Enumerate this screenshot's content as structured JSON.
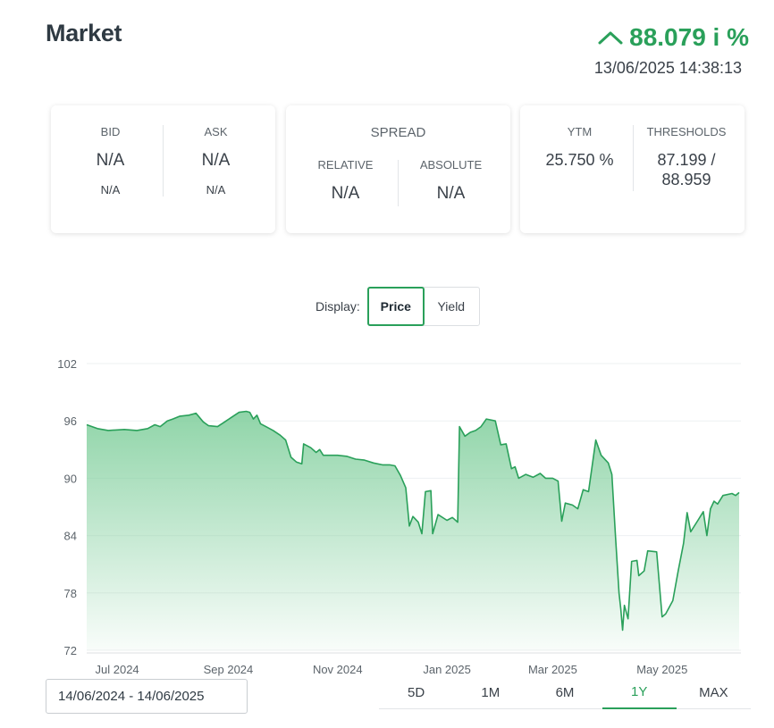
{
  "header": {
    "title": "Market",
    "price": "88.079 i %",
    "timestamp": "13/06/2025 14:38:13",
    "accent_color": "#2aa05a",
    "trend_icon": "chevron-up-icon"
  },
  "cards": {
    "bid_label": "BID",
    "bid_value": "N/A",
    "bid_sub": "N/A",
    "ask_label": "ASK",
    "ask_value": "N/A",
    "ask_sub": "N/A",
    "spread_label": "SPREAD",
    "relative_label": "RELATIVE",
    "relative_value": "N/A",
    "absolute_label": "ABSOLUTE",
    "absolute_value": "N/A",
    "ytm_label": "YTM",
    "ytm_value": "25.750 %",
    "thresholds_label": "THRESHOLDS",
    "thresholds_line1": "87.199 /",
    "thresholds_line2": "88.959"
  },
  "display": {
    "label": "Display:",
    "options": [
      "Price",
      "Yield"
    ],
    "selected": "Price"
  },
  "date_range": "14/06/2024 - 14/06/2025",
  "ranges": {
    "options": [
      "5D",
      "1M",
      "6M",
      "1Y",
      "MAX"
    ],
    "selected": "1Y"
  },
  "chart_data": {
    "type": "area",
    "title": "",
    "xlabel": "",
    "ylabel": "",
    "ylim": [
      72,
      102
    ],
    "yticks": [
      102,
      96,
      90,
      84,
      78,
      72
    ],
    "xlim": [
      "2024-06-14",
      "2025-06-14"
    ],
    "xticks": [
      {
        "label": "Jul 2024",
        "date": "2024-07-01"
      },
      {
        "label": "Sep 2024",
        "date": "2024-09-01"
      },
      {
        "label": "Nov 2024",
        "date": "2024-11-01"
      },
      {
        "label": "Jan 2025",
        "date": "2025-01-01"
      },
      {
        "label": "Mar 2025",
        "date": "2025-03-01"
      },
      {
        "label": "May 2025",
        "date": "2025-05-01"
      }
    ],
    "grid": true,
    "line_color": "#2aa05a",
    "series": [
      {
        "points": [
          [
            "2024-06-14",
            95.6
          ],
          [
            "2024-06-20",
            95.2
          ],
          [
            "2024-06-26",
            95.0
          ],
          [
            "2024-07-05",
            95.1
          ],
          [
            "2024-07-12",
            95.0
          ],
          [
            "2024-07-18",
            95.2
          ],
          [
            "2024-07-22",
            95.6
          ],
          [
            "2024-07-25",
            95.4
          ],
          [
            "2024-07-29",
            96.0
          ],
          [
            "2024-08-01",
            96.2
          ],
          [
            "2024-08-05",
            96.5
          ],
          [
            "2024-08-10",
            96.6
          ],
          [
            "2024-08-14",
            96.8
          ],
          [
            "2024-08-18",
            95.9
          ],
          [
            "2024-08-21",
            95.5
          ],
          [
            "2024-08-26",
            95.4
          ],
          [
            "2024-08-30",
            95.9
          ],
          [
            "2024-09-03",
            96.4
          ],
          [
            "2024-09-07",
            96.9
          ],
          [
            "2024-09-11",
            97.0
          ],
          [
            "2024-09-13",
            96.9
          ],
          [
            "2024-09-15",
            96.2
          ],
          [
            "2024-09-17",
            96.6
          ],
          [
            "2024-09-19",
            95.7
          ],
          [
            "2024-09-22",
            95.4
          ],
          [
            "2024-09-26",
            95.0
          ],
          [
            "2024-09-30",
            94.5
          ],
          [
            "2024-10-03",
            94.0
          ],
          [
            "2024-10-06",
            92.2
          ],
          [
            "2024-10-09",
            91.7
          ],
          [
            "2024-10-12",
            91.5
          ],
          [
            "2024-10-13",
            93.6
          ],
          [
            "2024-10-17",
            93.2
          ],
          [
            "2024-10-20",
            92.7
          ],
          [
            "2024-10-22",
            93.0
          ],
          [
            "2024-10-24",
            92.4
          ],
          [
            "2024-11-01",
            92.4
          ],
          [
            "2024-11-06",
            92.3
          ],
          [
            "2024-11-11",
            92.0
          ],
          [
            "2024-11-16",
            91.9
          ],
          [
            "2024-11-21",
            91.6
          ],
          [
            "2024-11-26",
            91.4
          ],
          [
            "2024-11-30",
            91.4
          ],
          [
            "2024-12-03",
            91.3
          ],
          [
            "2024-12-06",
            90.3
          ],
          [
            "2024-12-09",
            89.0
          ],
          [
            "2024-12-11",
            85.0
          ],
          [
            "2024-12-13",
            86.0
          ],
          [
            "2024-12-16",
            85.4
          ],
          [
            "2024-12-18",
            84.2
          ],
          [
            "2024-12-20",
            88.6
          ],
          [
            "2024-12-23",
            88.7
          ],
          [
            "2024-12-24",
            84.2
          ],
          [
            "2024-12-27",
            86.2
          ],
          [
            "2025-01-01",
            85.6
          ],
          [
            "2025-01-04",
            85.9
          ],
          [
            "2025-01-07",
            85.4
          ],
          [
            "2025-01-08",
            95.4
          ],
          [
            "2025-01-11",
            94.4
          ],
          [
            "2025-01-14",
            94.8
          ],
          [
            "2025-01-17",
            95.0
          ],
          [
            "2025-01-20",
            95.4
          ],
          [
            "2025-01-23",
            96.2
          ],
          [
            "2025-01-28",
            96.0
          ],
          [
            "2025-01-31",
            93.5
          ],
          [
            "2025-02-03",
            93.6
          ],
          [
            "2025-02-06",
            91.0
          ],
          [
            "2025-02-08",
            91.2
          ],
          [
            "2025-02-10",
            90.0
          ],
          [
            "2025-02-14",
            90.4
          ],
          [
            "2025-02-18",
            90.1
          ],
          [
            "2025-02-22",
            90.5
          ],
          [
            "2025-02-25",
            90.0
          ],
          [
            "2025-03-01",
            90.0
          ],
          [
            "2025-03-04",
            89.7
          ],
          [
            "2025-03-06",
            85.5
          ],
          [
            "2025-03-08",
            87.4
          ],
          [
            "2025-03-12",
            87.2
          ],
          [
            "2025-03-15",
            86.8
          ],
          [
            "2025-03-18",
            88.8
          ],
          [
            "2025-03-21",
            88.6
          ],
          [
            "2025-03-25",
            94.0
          ],
          [
            "2025-03-28",
            92.4
          ],
          [
            "2025-04-01",
            91.6
          ],
          [
            "2025-04-03",
            90.4
          ],
          [
            "2025-04-05",
            84.0
          ],
          [
            "2025-04-07",
            78.0
          ],
          [
            "2025-04-08",
            76.3
          ],
          [
            "2025-04-09",
            74.1
          ],
          [
            "2025-04-10",
            76.7
          ],
          [
            "2025-04-12",
            75.3
          ],
          [
            "2025-04-14",
            81.3
          ],
          [
            "2025-04-17",
            81.4
          ],
          [
            "2025-04-18",
            79.8
          ],
          [
            "2025-04-21",
            80.3
          ],
          [
            "2025-04-23",
            82.4
          ],
          [
            "2025-04-28",
            82.3
          ],
          [
            "2025-05-01",
            75.5
          ],
          [
            "2025-05-03",
            75.8
          ],
          [
            "2025-05-07",
            77.2
          ],
          [
            "2025-05-10",
            80.3
          ],
          [
            "2025-05-13",
            83.2
          ],
          [
            "2025-05-15",
            86.4
          ],
          [
            "2025-05-17",
            84.4
          ],
          [
            "2025-05-21",
            85.6
          ],
          [
            "2025-05-24",
            86.5
          ],
          [
            "2025-05-26",
            84.0
          ],
          [
            "2025-05-28",
            86.8
          ],
          [
            "2025-05-30",
            87.6
          ],
          [
            "2025-06-01",
            87.3
          ],
          [
            "2025-06-04",
            88.2
          ],
          [
            "2025-06-09",
            88.4
          ],
          [
            "2025-06-11",
            88.2
          ],
          [
            "2025-06-13",
            88.5
          ]
        ]
      }
    ]
  }
}
